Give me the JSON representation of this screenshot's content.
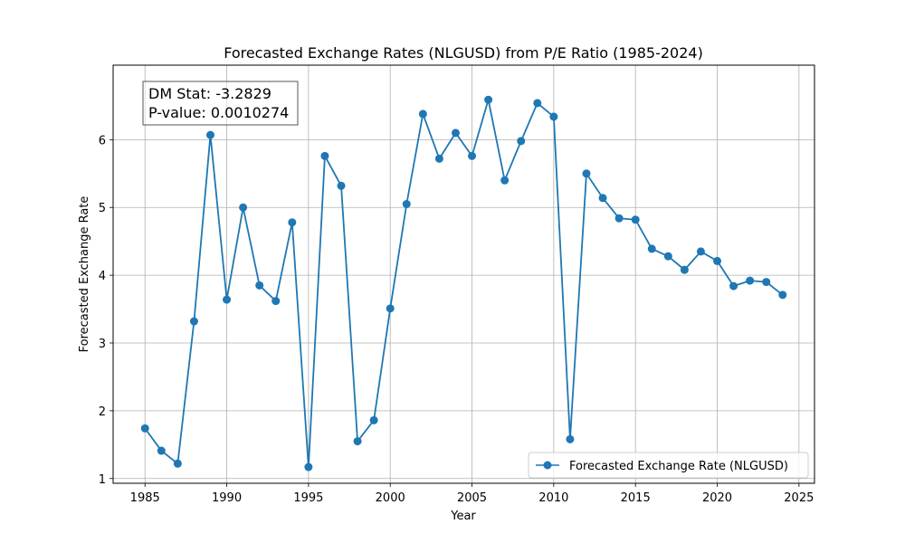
{
  "chart_data": {
    "type": "line",
    "title": "Forecasted Exchange Rates (NLGUSD) from P/E Ratio (1985-2024)",
    "xlabel": "Year",
    "ylabel": "Forecasted Exchange Rate",
    "xlim": [
      1983.05,
      2025.95
    ],
    "ylim": [
      0.93,
      7.1
    ],
    "x_ticks": [
      1985,
      1990,
      1995,
      2000,
      2005,
      2010,
      2015,
      2020,
      2025
    ],
    "y_ticks": [
      1,
      2,
      3,
      4,
      5,
      6
    ],
    "grid": true,
    "legend_position": "lower right",
    "series": [
      {
        "name": "Forecasted Exchange Rate (NLGUSD)",
        "color": "#1f77b4",
        "marker": "circle",
        "x": [
          1985,
          1986,
          1987,
          1988,
          1989,
          1990,
          1991,
          1992,
          1993,
          1994,
          1995,
          1996,
          1997,
          1998,
          1999,
          2000,
          2001,
          2002,
          2003,
          2004,
          2005,
          2006,
          2007,
          2008,
          2009,
          2010,
          2011,
          2012,
          2013,
          2014,
          2015,
          2016,
          2017,
          2018,
          2019,
          2020,
          2021,
          2022,
          2023,
          2024
        ],
        "y": [
          1.74,
          1.41,
          1.22,
          3.32,
          6.07,
          3.64,
          5.0,
          3.85,
          3.62,
          4.78,
          1.17,
          5.76,
          5.32,
          1.55,
          1.86,
          3.51,
          5.05,
          6.38,
          5.72,
          6.1,
          5.76,
          6.59,
          5.4,
          5.98,
          6.54,
          6.34,
          1.58,
          5.5,
          5.14,
          4.84,
          4.82,
          4.39,
          4.28,
          4.08,
          4.35,
          4.21,
          3.84,
          3.92,
          3.9,
          3.71
        ]
      }
    ],
    "annotation": {
      "line1": "DM Stat: -3.2829",
      "line2": "P-value: 0.0010274",
      "position": "upper left"
    }
  }
}
